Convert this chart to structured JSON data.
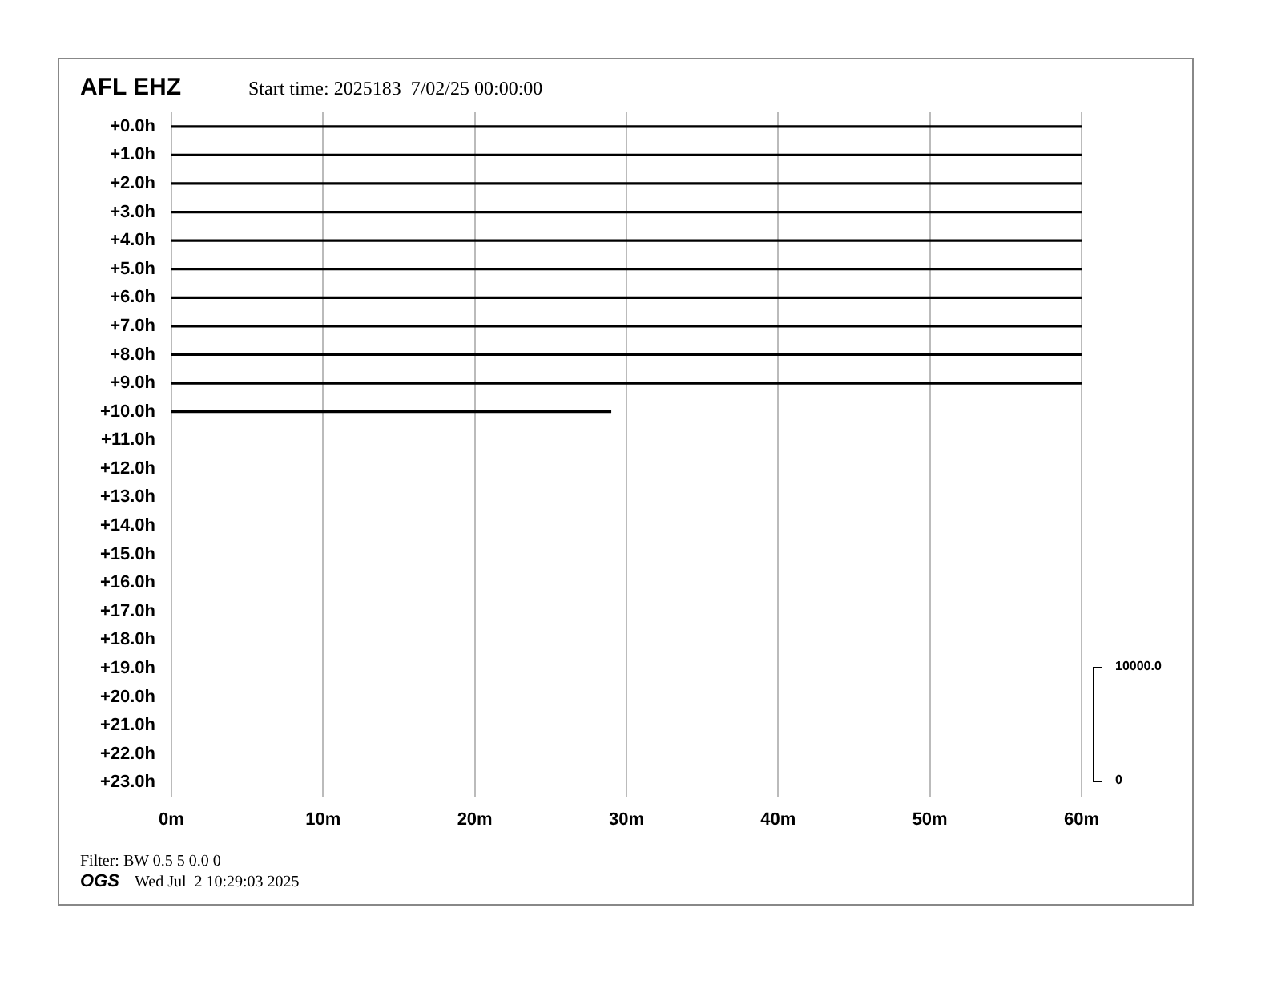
{
  "chart_data": {
    "type": "line",
    "title": "AFL EHZ",
    "subtitle": "Start time: 2025183  7/02/25 00:00:00",
    "xlim": [
      0,
      60
    ],
    "xticks": [
      {
        "value": 0,
        "label": "0m"
      },
      {
        "value": 10,
        "label": "10m"
      },
      {
        "value": 20,
        "label": "20m"
      },
      {
        "value": 30,
        "label": "30m"
      },
      {
        "value": 40,
        "label": "40m"
      },
      {
        "value": 50,
        "label": "50m"
      },
      {
        "value": 60,
        "label": "60m"
      }
    ],
    "ylim": [
      23.5,
      -0.5
    ],
    "yticks": [
      {
        "value": 0,
        "label": "+0.0h"
      },
      {
        "value": 1,
        "label": "+1.0h"
      },
      {
        "value": 2,
        "label": "+2.0h"
      },
      {
        "value": 3,
        "label": "+3.0h"
      },
      {
        "value": 4,
        "label": "+4.0h"
      },
      {
        "value": 5,
        "label": "+5.0h"
      },
      {
        "value": 6,
        "label": "+6.0h"
      },
      {
        "value": 7,
        "label": "+7.0h"
      },
      {
        "value": 8,
        "label": "+8.0h"
      },
      {
        "value": 9,
        "label": "+9.0h"
      },
      {
        "value": 10,
        "label": "+10.0h"
      },
      {
        "value": 11,
        "label": "+11.0h"
      },
      {
        "value": 12,
        "label": "+12.0h"
      },
      {
        "value": 13,
        "label": "+13.0h"
      },
      {
        "value": 14,
        "label": "+14.0h"
      },
      {
        "value": 15,
        "label": "+15.0h"
      },
      {
        "value": 16,
        "label": "+16.0h"
      },
      {
        "value": 17,
        "label": "+17.0h"
      },
      {
        "value": 18,
        "label": "+18.0h"
      },
      {
        "value": 19,
        "label": "+19.0h"
      },
      {
        "value": 20,
        "label": "+20.0h"
      },
      {
        "value": 21,
        "label": "+21.0h"
      },
      {
        "value": 22,
        "label": "+22.0h"
      },
      {
        "value": 23,
        "label": "+23.0h"
      }
    ],
    "grid": "x",
    "legend": false,
    "marker": "none",
    "line_style": "solid",
    "series": [
      {
        "color": "#000000",
        "x": [
          0,
          60
        ],
        "values": [
          0,
          0
        ]
      },
      {
        "color": "#000000",
        "x": [
          0,
          60
        ],
        "values": [
          1,
          1
        ]
      },
      {
        "color": "#000000",
        "x": [
          0,
          60
        ],
        "values": [
          2,
          2
        ]
      },
      {
        "color": "#000000",
        "x": [
          0,
          60
        ],
        "values": [
          3,
          3
        ]
      },
      {
        "color": "#000000",
        "x": [
          0,
          60
        ],
        "values": [
          4,
          4
        ]
      },
      {
        "color": "#000000",
        "x": [
          0,
          60
        ],
        "values": [
          5,
          5
        ]
      },
      {
        "color": "#000000",
        "x": [
          0,
          60
        ],
        "values": [
          6,
          6
        ]
      },
      {
        "color": "#000000",
        "x": [
          0,
          60
        ],
        "values": [
          7,
          7
        ]
      },
      {
        "color": "#000000",
        "x": [
          0,
          60
        ],
        "values": [
          8,
          8
        ]
      },
      {
        "color": "#000000",
        "x": [
          0,
          60
        ],
        "values": [
          9,
          9
        ]
      },
      {
        "color": "#000000",
        "x": [
          0,
          29
        ],
        "values": [
          10,
          10
        ]
      }
    ],
    "annotations": [
      "Filter: BW 0.5 5 0.0 0",
      "OGS",
      "Wed Jul  2 10:29:03 2025",
      "10000.0",
      "0"
    ]
  }
}
